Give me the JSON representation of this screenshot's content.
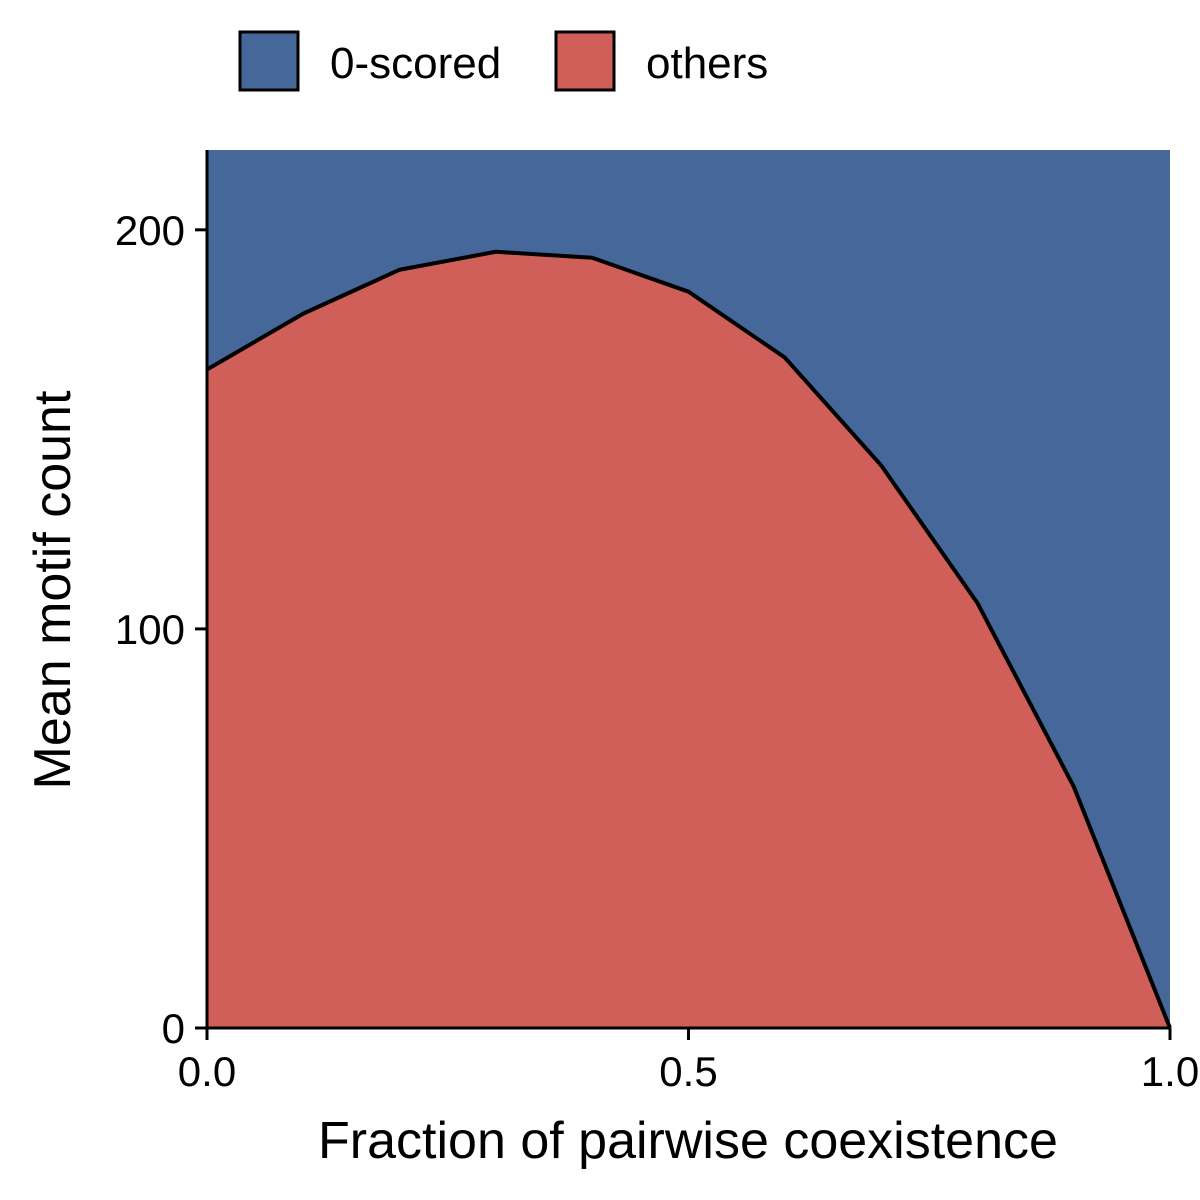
{
  "chart_data": {
    "type": "area",
    "xlabel": "Fraction of pairwise coexistence",
    "ylabel": "Mean motif count",
    "xlim": [
      0,
      1
    ],
    "ylim": [
      0,
      220
    ],
    "x_ticks": [
      {
        "value": 0,
        "label": "0.0"
      },
      {
        "value": 0.5,
        "label": "0.5"
      },
      {
        "value": 1,
        "label": "1.0"
      }
    ],
    "y_ticks": [
      {
        "value": 0,
        "label": "0"
      },
      {
        "value": 100,
        "label": "100"
      },
      {
        "value": 200,
        "label": "200"
      }
    ],
    "grid": false,
    "legend_position": "top",
    "stacked": true,
    "x": [
      0,
      0.1,
      0.2,
      0.3,
      0.4,
      0.5,
      0.6,
      0.7,
      0.8,
      0.9,
      1.0
    ],
    "series": [
      {
        "name": "others",
        "color": "#D05E59",
        "values": [
          165,
          179,
          190,
          194.5,
          193,
          184.5,
          168,
          141,
          106.5,
          60.5,
          0
        ]
      },
      {
        "name": "0-scored",
        "color": "#46679A",
        "values": [
          55,
          41,
          30,
          25.5,
          27,
          35.5,
          52,
          79,
          113.5,
          159.5,
          220
        ]
      }
    ],
    "legend": [
      {
        "label": "0-scored",
        "color": "#46679A"
      },
      {
        "label": "others",
        "color": "#D05E59"
      }
    ]
  }
}
